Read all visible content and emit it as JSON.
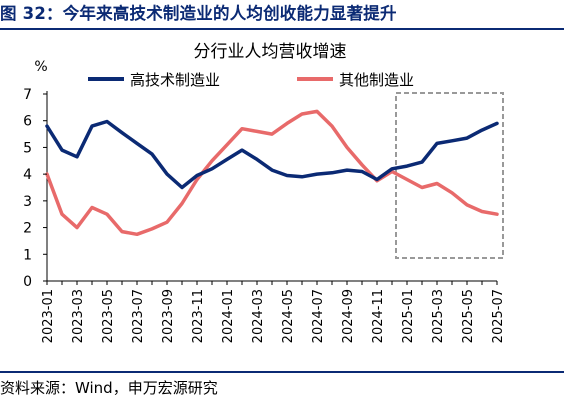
{
  "figure": {
    "title": "图 32：今年来高技术制造业的人均创收能力显著提升",
    "source": "资料来源：Wind，申万宏源研究"
  },
  "chart_data": {
    "type": "line",
    "title": "分行业人均营收增速",
    "ylabel": "%",
    "xlabel": "",
    "ylim": [
      0,
      7
    ],
    "yticks": [
      0,
      1,
      2,
      3,
      4,
      5,
      6,
      7
    ],
    "x": [
      "2023-01",
      "2023-02",
      "2023-03",
      "2023-04",
      "2023-05",
      "2023-06",
      "2023-07",
      "2023-08",
      "2023-09",
      "2023-10",
      "2023-11",
      "2023-12",
      "2024-01",
      "2024-02",
      "2024-03",
      "2024-04",
      "2024-05",
      "2024-06",
      "2024-07",
      "2024-08",
      "2024-09",
      "2024-10",
      "2024-11",
      "2024-12",
      "2025-01",
      "2025-02",
      "2025-03",
      "2025-04",
      "2025-05",
      "2025-06",
      "2025-07"
    ],
    "xtick_labels": [
      "2023-01",
      "2023-03",
      "2023-05",
      "2023-07",
      "2023-09",
      "2023-11",
      "2024-01",
      "2024-03",
      "2024-05",
      "2024-07",
      "2024-09",
      "2024-11",
      "2025-01",
      "2025-03",
      "2025-05",
      "2025-07"
    ],
    "series": [
      {
        "name": "高技术制造业",
        "color": "#0b2a74",
        "values": [
          5.8,
          4.9,
          4.65,
          5.8,
          5.97,
          5.55,
          5.15,
          4.75,
          4.0,
          3.5,
          3.95,
          4.2,
          4.55,
          4.9,
          4.55,
          4.15,
          3.95,
          3.9,
          4.0,
          4.05,
          4.15,
          4.1,
          3.8,
          4.2,
          4.3,
          4.45,
          5.15,
          5.25,
          5.35,
          5.65,
          5.9
        ]
      },
      {
        "name": "其他制造业",
        "color": "#e86a6a",
        "values": [
          4.0,
          2.5,
          2.0,
          2.75,
          2.5,
          1.85,
          1.75,
          1.95,
          2.2,
          2.9,
          3.8,
          4.5,
          5.1,
          5.7,
          5.6,
          5.5,
          5.9,
          6.25,
          6.35,
          5.8,
          5.0,
          4.35,
          3.75,
          4.1,
          3.8,
          3.5,
          3.65,
          3.3,
          2.85,
          2.6,
          2.5
        ]
      }
    ],
    "highlight": {
      "from": "2024-12",
      "to": "2025-07",
      "style": "dashed-box",
      "color": "#999999"
    },
    "legend": "top"
  }
}
